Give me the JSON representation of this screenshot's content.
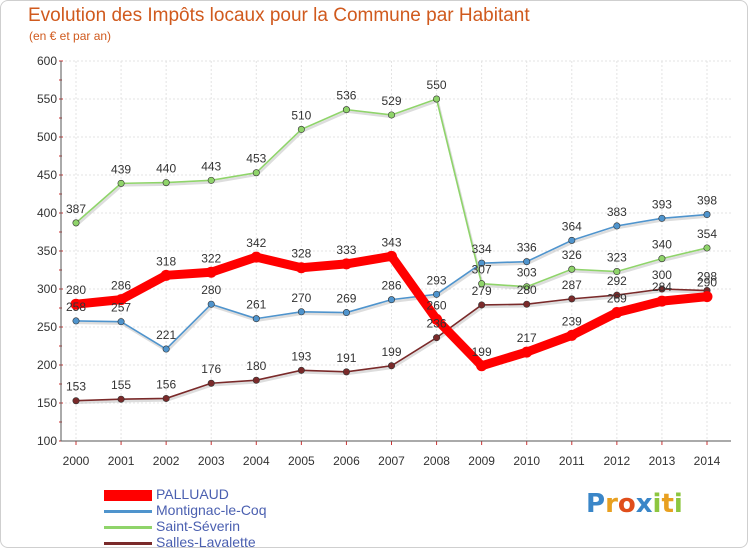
{
  "header": {
    "title": "Evolution des Impôts locaux pour la Commune par Habitant",
    "subtitle": "(en € et par an)"
  },
  "logo": {
    "text": "Proxiti",
    "letters": [
      {
        "ch": "P",
        "color": "#3a86c8"
      },
      {
        "ch": "r",
        "color": "#e8a020"
      },
      {
        "ch": "o",
        "color": "#e04e1b"
      },
      {
        "ch": "x",
        "color": "#3a86c8"
      },
      {
        "ch": "i",
        "color": "#8dc63f"
      },
      {
        "ch": "t",
        "color": "#e8a020"
      },
      {
        "ch": "i",
        "color": "#8dc63f"
      }
    ]
  },
  "chart_data": {
    "type": "line",
    "title": "Evolution des Impôts locaux pour la Commune par Habitant",
    "subtitle": "(en € et par an)",
    "xlabel": "",
    "ylabel": "",
    "x": [
      2000,
      2001,
      2002,
      2003,
      2004,
      2005,
      2006,
      2007,
      2008,
      2009,
      2010,
      2011,
      2012,
      2013,
      2014
    ],
    "ylim": [
      100,
      600
    ],
    "yticks": [
      100,
      150,
      200,
      250,
      300,
      350,
      400,
      450,
      500,
      550,
      600
    ],
    "grid": true,
    "legend_position": "bottom-left",
    "series": [
      {
        "name": "PALLUAUD",
        "color": "#ff0000",
        "values": [
          280,
          286,
          318,
          322,
          342,
          328,
          333,
          343,
          260,
          199,
          217,
          239,
          269,
          284,
          290
        ]
      },
      {
        "name": "Montignac-le-Coq",
        "color": "#4f94cd",
        "values": [
          258,
          257,
          221,
          280,
          261,
          270,
          269,
          286,
          293,
          334,
          336,
          364,
          383,
          393,
          398
        ]
      },
      {
        "name": "Saint-Séverin",
        "color": "#8fd46a",
        "values": [
          387,
          439,
          440,
          443,
          453,
          510,
          536,
          529,
          550,
          307,
          303,
          326,
          323,
          340,
          354
        ]
      },
      {
        "name": "Salles-Lavalette",
        "color": "#7a2a2a",
        "values": [
          153,
          155,
          156,
          176,
          180,
          193,
          191,
          199,
          236,
          279,
          280,
          287,
          292,
          300,
          298
        ]
      }
    ]
  }
}
